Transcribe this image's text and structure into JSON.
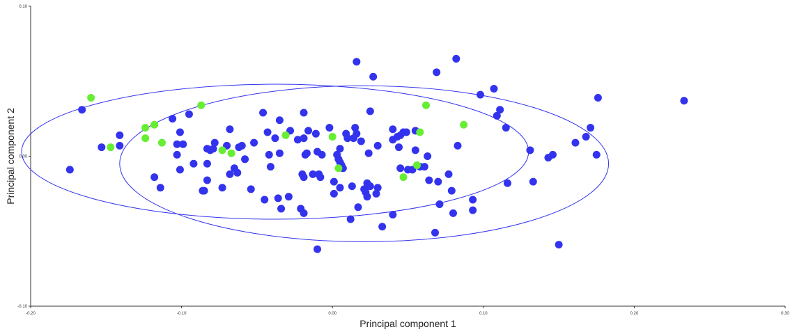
{
  "chart_data": {
    "type": "scatter",
    "xlabel": "Principal component 1",
    "ylabel": "Principal component 2",
    "xlim": [
      -0.2,
      0.3
    ],
    "ylim": [
      -0.1,
      0.1
    ],
    "x_ticks": [
      -0.2,
      -0.1,
      0.0,
      0.1,
      0.2,
      0.3
    ],
    "x_tick_labels": [
      "-0.20",
      "-0.10",
      "0.00",
      "0.10",
      "0.20",
      "0.30"
    ],
    "y_ticks": [
      -0.1,
      0.0,
      0.1
    ],
    "y_tick_labels": [
      "-0.10",
      "0.00",
      "0.10"
    ],
    "grid": false,
    "legend": "none",
    "series": [
      {
        "color": "#3333ee",
        "points": [
          [
            -0.174,
            -0.009
          ],
          [
            -0.166,
            0.031
          ],
          [
            -0.153,
            0.006
          ],
          [
            -0.141,
            0.007
          ],
          [
            -0.141,
            0.014
          ],
          [
            -0.118,
            -0.014
          ],
          [
            -0.114,
            -0.021
          ],
          [
            -0.106,
            0.025
          ],
          [
            -0.103,
            0.008
          ],
          [
            -0.103,
            0.001
          ],
          [
            -0.101,
            0.016
          ],
          [
            -0.101,
            -0.009
          ],
          [
            -0.099,
            0.008
          ],
          [
            -0.095,
            0.028
          ],
          [
            -0.092,
            -0.005
          ],
          [
            -0.086,
            -0.023
          ],
          [
            -0.085,
            -0.023
          ],
          [
            -0.083,
            0.005
          ],
          [
            -0.083,
            -0.005
          ],
          [
            -0.083,
            -0.016
          ],
          [
            -0.081,
            0.004
          ],
          [
            -0.079,
            0.005
          ],
          [
            -0.078,
            0.009
          ],
          [
            -0.073,
            -0.021
          ],
          [
            -0.07,
            0.007
          ],
          [
            -0.068,
            0.018
          ],
          [
            -0.068,
            -0.012
          ],
          [
            -0.065,
            -0.008
          ],
          [
            -0.063,
            -0.011
          ],
          [
            -0.062,
            0.006
          ],
          [
            -0.06,
            0.007
          ],
          [
            -0.058,
            -0.002
          ],
          [
            -0.054,
            -0.022
          ],
          [
            -0.052,
            0.009
          ],
          [
            -0.046,
            0.029
          ],
          [
            -0.045,
            -0.029
          ],
          [
            -0.043,
            0.016
          ],
          [
            -0.042,
            0.001
          ],
          [
            -0.041,
            -0.007
          ],
          [
            -0.038,
            0.012
          ],
          [
            -0.036,
            -0.028
          ],
          [
            -0.035,
            0.024
          ],
          [
            -0.035,
            0.002
          ],
          [
            -0.034,
            -0.035
          ],
          [
            -0.029,
            -0.027
          ],
          [
            -0.028,
            0.017
          ],
          [
            -0.023,
            0.011
          ],
          [
            -0.021,
            -0.035
          ],
          [
            -0.02,
            -0.012
          ],
          [
            -0.019,
            0.029
          ],
          [
            -0.019,
            0.012
          ],
          [
            -0.019,
            -0.038
          ],
          [
            -0.019,
            -0.014
          ],
          [
            -0.018,
            0.001
          ],
          [
            -0.017,
            0.002
          ],
          [
            -0.016,
            0.017
          ],
          [
            -0.013,
            -0.012
          ],
          [
            -0.011,
            0.015
          ],
          [
            -0.01,
            0.003
          ],
          [
            -0.01,
            -0.062
          ],
          [
            -0.009,
            -0.012
          ],
          [
            -0.008,
            -0.014
          ],
          [
            -0.007,
            0.001
          ],
          [
            -0.002,
            0.019
          ],
          [
            0.001,
            -0.017
          ],
          [
            0.001,
            -0.025
          ],
          [
            0.003,
            0.001
          ],
          [
            0.004,
            -0.002
          ],
          [
            0.005,
            -0.004
          ],
          [
            0.005,
            -0.021
          ],
          [
            0.005,
            0.005
          ],
          [
            0.006,
            -0.006
          ],
          [
            0.007,
            -0.008
          ],
          [
            0.009,
            0.015
          ],
          [
            0.01,
            0.012
          ],
          [
            0.012,
            -0.042
          ],
          [
            0.013,
            -0.02
          ],
          [
            0.014,
            0.012
          ],
          [
            0.015,
            0.019
          ],
          [
            0.016,
            0.063
          ],
          [
            0.016,
            0.015
          ],
          [
            0.017,
            -0.034
          ],
          [
            0.019,
            0.01
          ],
          [
            0.021,
            -0.022
          ],
          [
            0.022,
            -0.024
          ],
          [
            0.023,
            -0.018
          ],
          [
            0.023,
            -0.027
          ],
          [
            0.024,
            0.002
          ],
          [
            0.025,
            0.03
          ],
          [
            0.025,
            -0.02
          ],
          [
            0.027,
            0.053
          ],
          [
            0.029,
            -0.025
          ],
          [
            0.03,
            -0.021
          ],
          [
            0.03,
            0.007
          ],
          [
            0.033,
            -0.047
          ],
          [
            0.04,
            -0.039
          ],
          [
            0.04,
            0.011
          ],
          [
            0.04,
            0.018
          ],
          [
            0.043,
            0.013
          ],
          [
            0.044,
            0.006
          ],
          [
            0.045,
            -0.008
          ],
          [
            0.045,
            0.014
          ],
          [
            0.047,
            0.016
          ],
          [
            0.049,
            0.016
          ],
          [
            0.05,
            -0.009
          ],
          [
            0.053,
            -0.009
          ],
          [
            0.055,
            0.004
          ],
          [
            0.055,
            0.017
          ],
          [
            0.058,
            -0.007
          ],
          [
            0.061,
            -0.007
          ],
          [
            0.063,
            0.0
          ],
          [
            0.064,
            -0.016
          ],
          [
            0.068,
            -0.051
          ],
          [
            0.069,
            0.056
          ],
          [
            0.07,
            -0.017
          ],
          [
            0.071,
            -0.032
          ],
          [
            0.077,
            -0.012
          ],
          [
            0.079,
            -0.023
          ],
          [
            0.08,
            -0.038
          ],
          [
            0.082,
            0.065
          ],
          [
            0.083,
            0.007
          ],
          [
            0.093,
            -0.029
          ],
          [
            0.093,
            -0.036
          ],
          [
            0.098,
            0.041
          ],
          [
            0.107,
            0.045
          ],
          [
            0.109,
            0.027
          ],
          [
            0.111,
            0.031
          ],
          [
            0.115,
            0.019
          ],
          [
            0.116,
            -0.018
          ],
          [
            0.131,
            0.004
          ],
          [
            0.133,
            -0.017
          ],
          [
            0.143,
            -0.001
          ],
          [
            0.146,
            0.001
          ],
          [
            0.15,
            -0.059
          ],
          [
            0.161,
            0.009
          ],
          [
            0.168,
            0.013
          ],
          [
            0.171,
            0.019
          ],
          [
            0.175,
            0.001
          ],
          [
            0.176,
            0.039
          ],
          [
            0.233,
            0.037
          ]
        ]
      },
      {
        "color": "#66ee33",
        "points": [
          [
            -0.16,
            0.039
          ],
          [
            -0.147,
            0.006
          ],
          [
            -0.124,
            0.012
          ],
          [
            -0.124,
            0.019
          ],
          [
            -0.118,
            0.021
          ],
          [
            -0.113,
            0.009
          ],
          [
            -0.087,
            0.034
          ],
          [
            -0.073,
            0.004
          ],
          [
            -0.067,
            0.002
          ],
          [
            -0.031,
            0.014
          ],
          [
            0.0,
            0.013
          ],
          [
            0.004,
            -0.008
          ],
          [
            0.047,
            -0.014
          ],
          [
            0.056,
            -0.006
          ],
          [
            0.058,
            0.016
          ],
          [
            0.062,
            0.034
          ],
          [
            0.087,
            0.021
          ]
        ]
      }
    ],
    "ellipses": [
      {
        "center": [
          -0.038,
          0.003
        ],
        "rx": 0.168,
        "ry": 0.045,
        "color": "#3333ee"
      },
      {
        "center": [
          0.021,
          -0.005
        ],
        "rx": 0.162,
        "ry": 0.052,
        "color": "#3333ee"
      }
    ]
  }
}
